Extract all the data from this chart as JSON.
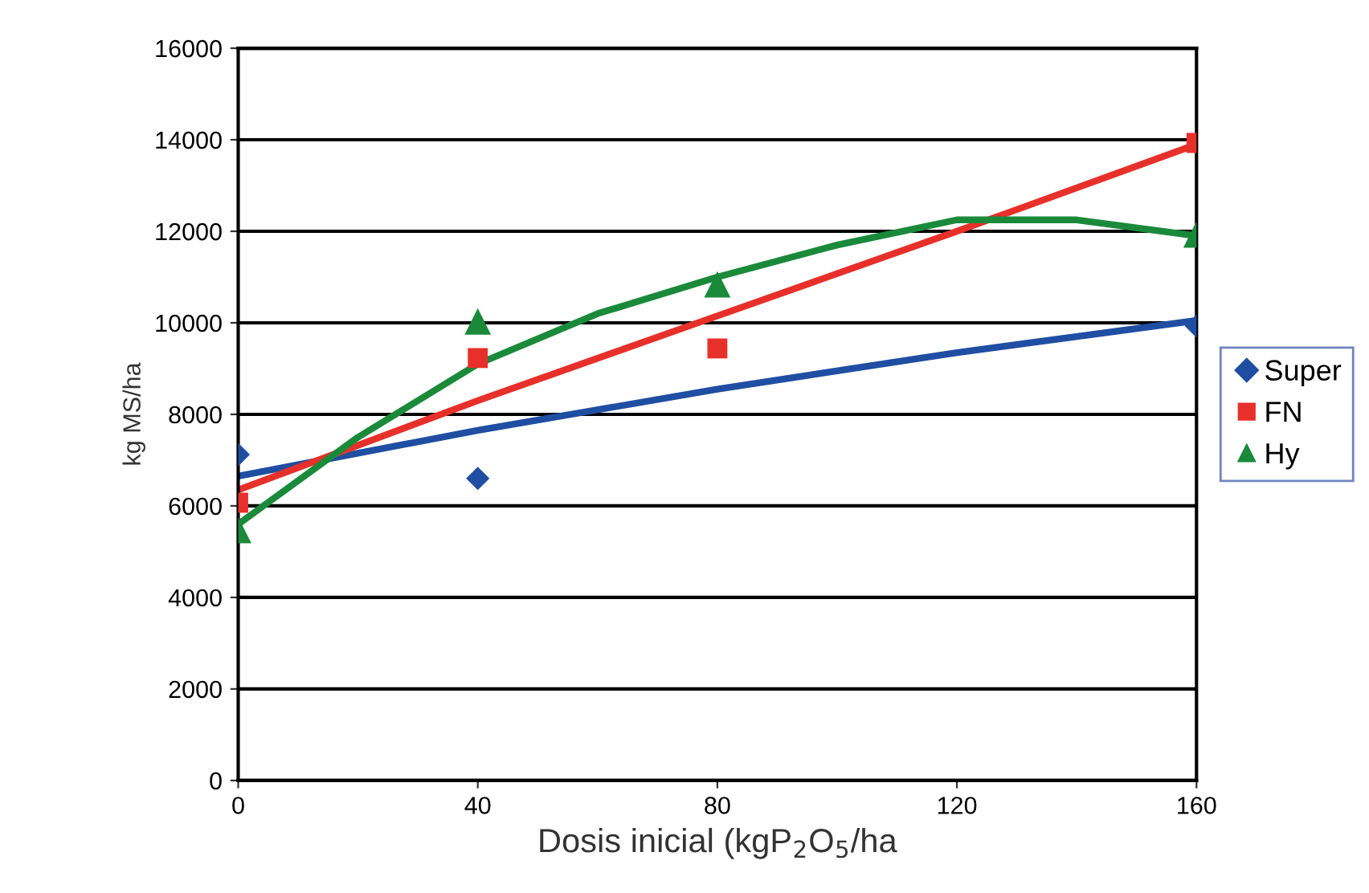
{
  "chart_data": {
    "type": "scatter",
    "xlabel": "Dosis inicial (kgP$_{2}$O$_{5}$/ha",
    "ylabel": "kg MS/ha",
    "x": [
      0,
      40,
      80,
      160
    ],
    "series": [
      {
        "name": "Super",
        "color": "#1f4ea3",
        "marker": "diamond",
        "x": [
          0,
          40,
          160
        ],
        "values": [
          7120,
          6600,
          9930
        ]
      },
      {
        "name": "FN",
        "color": "#e8302a",
        "marker": "square",
        "values": [
          6070,
          9230,
          9440,
          13930
        ]
      },
      {
        "name": "Hy",
        "color": "#1a8a3a",
        "marker": "triangle",
        "values": [
          5470,
          10030,
          10840,
          11930
        ]
      },
      {
        "type": "line",
        "color": "#1f4ea3",
        "x": [
          0,
          40,
          80,
          120,
          160
        ],
        "values": [
          6650,
          7650,
          8550,
          9350,
          10050
        ]
      },
      {
        "type": "line",
        "color": "#e8302a",
        "x": [
          0,
          40,
          80,
          120,
          160
        ],
        "values": [
          6350,
          8300,
          10150,
          12000,
          13900
        ]
      },
      {
        "type": "line",
        "color": "#1a8a3a",
        "x": [
          0,
          20,
          40,
          60,
          80,
          100,
          120,
          140,
          160
        ],
        "values": [
          5600,
          7500,
          9100,
          10200,
          11000,
          11700,
          12250,
          12250,
          11900
        ]
      }
    ],
    "xlim": [
      0,
      160
    ],
    "xticks": [
      0,
      40,
      80,
      120,
      160
    ],
    "ylim": [
      0,
      16000
    ],
    "yticks": [
      0,
      2000,
      4000,
      6000,
      8000,
      10000,
      12000,
      14000,
      16000
    ],
    "grid": "y",
    "legend": "right",
    "line_style": "solid"
  }
}
